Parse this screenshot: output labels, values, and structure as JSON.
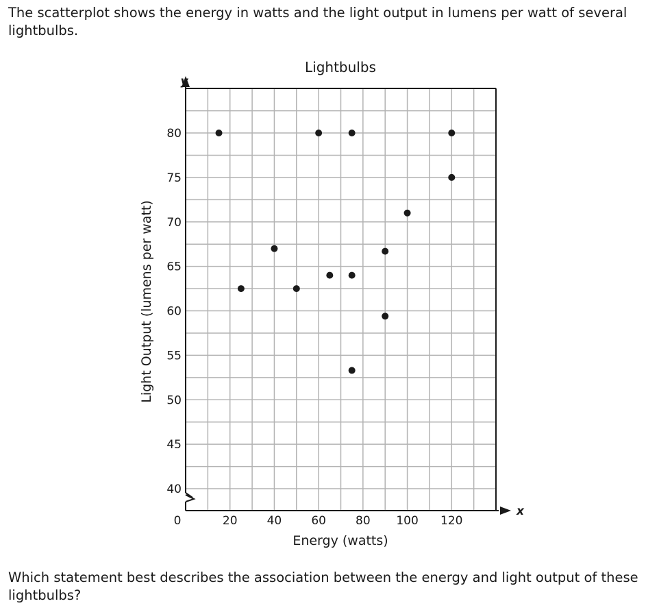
{
  "prompt": {
    "intro": "The scatterplot shows the energy in watts and the light output in lumens per watt of several lightbulbs.",
    "question": "Which statement best describes the association between the energy and light output of these lightbulbs?"
  },
  "chart_data": {
    "type": "scatter",
    "title": "Lightbulbs",
    "xlabel": "Energy (watts)",
    "ylabel": "Light Output (lumens per watt)",
    "x_axis_letter": "x",
    "y_axis_letter": "y",
    "origin_label": "0",
    "xlim": [
      0,
      140
    ],
    "ylim": [
      37.5,
      85
    ],
    "x_break_at": 40,
    "y_axis_break": true,
    "x_ticks": [
      20,
      40,
      60,
      80,
      100,
      120
    ],
    "x_tick_labels": [
      "20",
      "40",
      "60",
      "80",
      "100",
      "120"
    ],
    "y_ticks": [
      40,
      45,
      50,
      55,
      60,
      65,
      70,
      75,
      80
    ],
    "y_tick_labels": [
      "40",
      "45",
      "50",
      "55",
      "60",
      "65",
      "70",
      "75",
      "80"
    ],
    "x_grid_step": 10,
    "y_grid_step": 2.5,
    "grid": true,
    "points": [
      {
        "x": 15,
        "y": 80
      },
      {
        "x": 25,
        "y": 62.5
      },
      {
        "x": 40,
        "y": 67
      },
      {
        "x": 50,
        "y": 62.5
      },
      {
        "x": 60,
        "y": 80
      },
      {
        "x": 65,
        "y": 64
      },
      {
        "x": 75,
        "y": 80
      },
      {
        "x": 75,
        "y": 64
      },
      {
        "x": 75,
        "y": 53.3
      },
      {
        "x": 90,
        "y": 66.7
      },
      {
        "x": 90,
        "y": 59.4
      },
      {
        "x": 100,
        "y": 71
      },
      {
        "x": 120,
        "y": 80
      },
      {
        "x": 120,
        "y": 75
      }
    ],
    "colors": {
      "grid": "#b3b3b3",
      "axis": "#1a1a1a",
      "point": "#1a1a1a"
    }
  }
}
